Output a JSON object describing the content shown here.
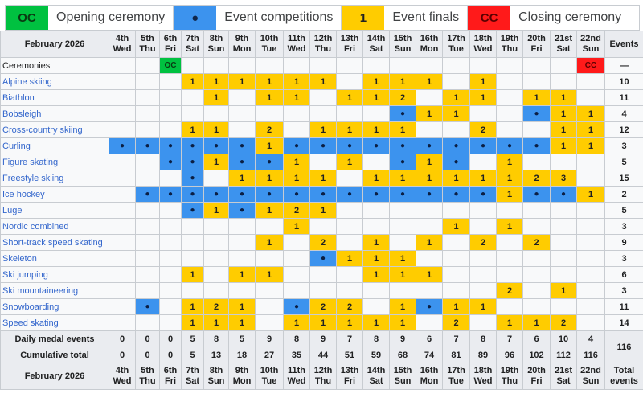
{
  "legend": [
    {
      "symbol": "OC",
      "label": "Opening ceremony",
      "color": "#00c140"
    },
    {
      "symbol": "●",
      "label": "Event competitions",
      "color": "#3c93ee"
    },
    {
      "symbol": "1",
      "label": "Event finals",
      "color": "#ffcc00"
    },
    {
      "symbol": "CC",
      "label": "Closing ceremony",
      "color": "#ff1a1a"
    }
  ],
  "header": {
    "corner": "February 2026",
    "events_label": "Events",
    "total_label": "Total events",
    "days": [
      {
        "day": "4th",
        "wd": "Wed"
      },
      {
        "day": "5th",
        "wd": "Thu"
      },
      {
        "day": "6th",
        "wd": "Fri"
      },
      {
        "day": "7th",
        "wd": "Sat"
      },
      {
        "day": "8th",
        "wd": "Sun"
      },
      {
        "day": "9th",
        "wd": "Mon"
      },
      {
        "day": "10th",
        "wd": "Tue"
      },
      {
        "day": "11th",
        "wd": "Wed"
      },
      {
        "day": "12th",
        "wd": "Thu"
      },
      {
        "day": "13th",
        "wd": "Fri"
      },
      {
        "day": "14th",
        "wd": "Sat"
      },
      {
        "day": "15th",
        "wd": "Sun"
      },
      {
        "day": "16th",
        "wd": "Mon"
      },
      {
        "day": "17th",
        "wd": "Tue"
      },
      {
        "day": "18th",
        "wd": "Wed"
      },
      {
        "day": "19th",
        "wd": "Thu"
      },
      {
        "day": "20th",
        "wd": "Fri"
      },
      {
        "day": "21st",
        "wd": "Sat"
      },
      {
        "day": "22nd",
        "wd": "Sun"
      }
    ]
  },
  "rows": [
    {
      "sport": "Ceremonies",
      "cells": [
        "",
        "",
        "OC",
        "",
        "",
        "",
        "",
        "",
        "",
        "",
        "",
        "",
        "",
        "",
        "",
        "",
        "",
        "",
        "CC"
      ],
      "total": "—"
    },
    {
      "sport": "Alpine skiing",
      "cells": [
        "",
        "",
        "",
        "1",
        "1",
        "1",
        "1",
        "1",
        "1",
        "",
        "1",
        "1",
        "1",
        "",
        "1",
        "",
        "",
        "",
        ""
      ],
      "total": "10"
    },
    {
      "sport": "Biathlon",
      "cells": [
        "",
        "",
        "",
        "",
        "1",
        "",
        "1",
        "1",
        "",
        "1",
        "1",
        "2",
        "",
        "1",
        "1",
        "",
        "1",
        "1",
        ""
      ],
      "total": "11"
    },
    {
      "sport": "Bobsleigh",
      "cells": [
        "",
        "",
        "",
        "",
        "",
        "",
        "",
        "",
        "",
        "",
        "",
        "●",
        "1",
        "1",
        "",
        "",
        "●",
        "1",
        "1"
      ],
      "total": "4"
    },
    {
      "sport": "Cross-country skiing",
      "cells": [
        "",
        "",
        "",
        "1",
        "1",
        "",
        "2",
        "",
        "1",
        "1",
        "1",
        "1",
        "",
        "",
        "2",
        "",
        "",
        "1",
        "1"
      ],
      "total": "12"
    },
    {
      "sport": "Curling",
      "cells": [
        "●",
        "●",
        "●",
        "●",
        "●",
        "●",
        "1",
        "●",
        "●",
        "●",
        "●",
        "●",
        "●",
        "●",
        "●",
        "●",
        "●",
        "1",
        "1"
      ],
      "total": "3"
    },
    {
      "sport": "Figure skating",
      "cells": [
        "",
        "",
        "●",
        "●",
        "1",
        "●",
        "●",
        "1",
        "",
        "1",
        "",
        "●",
        "1",
        "●",
        "",
        "1",
        "",
        "",
        ""
      ],
      "total": "5"
    },
    {
      "sport": "Freestyle skiing",
      "cells": [
        "",
        "",
        "",
        "●",
        "",
        "1",
        "1",
        "1",
        "1",
        "",
        "1",
        "1",
        "1",
        "1",
        "1",
        "1",
        "2",
        "3",
        ""
      ],
      "total": "15"
    },
    {
      "sport": "Ice hockey",
      "cells": [
        "",
        "●",
        "●",
        "●",
        "●",
        "●",
        "●",
        "●",
        "●",
        "●",
        "●",
        "●",
        "●",
        "●",
        "●",
        "1",
        "●",
        "●",
        "1"
      ],
      "total": "2"
    },
    {
      "sport": "Luge",
      "cells": [
        "",
        "",
        "",
        "●",
        "1",
        "●",
        "1",
        "2",
        "1",
        "",
        "",
        "",
        "",
        "",
        "",
        "",
        "",
        "",
        ""
      ],
      "total": "5"
    },
    {
      "sport": "Nordic combined",
      "cells": [
        "",
        "",
        "",
        "",
        "",
        "",
        "",
        "1",
        "",
        "",
        "",
        "",
        "",
        "1",
        "",
        "1",
        "",
        "",
        ""
      ],
      "total": "3"
    },
    {
      "sport": "Short-track speed skating",
      "cells": [
        "",
        "",
        "",
        "",
        "",
        "",
        "1",
        "",
        "2",
        "",
        "1",
        "",
        "1",
        "",
        "2",
        "",
        "2",
        "",
        ""
      ],
      "total": "9"
    },
    {
      "sport": "Skeleton",
      "cells": [
        "",
        "",
        "",
        "",
        "",
        "",
        "",
        "",
        "●",
        "1",
        "1",
        "1",
        "",
        "",
        "",
        "",
        "",
        "",
        ""
      ],
      "total": "3"
    },
    {
      "sport": "Ski jumping",
      "cells": [
        "",
        "",
        "",
        "1",
        "",
        "1",
        "1",
        "",
        "",
        "",
        "1",
        "1",
        "1",
        "",
        "",
        "",
        "",
        "",
        ""
      ],
      "total": "6"
    },
    {
      "sport": "Ski mountaineering",
      "cells": [
        "",
        "",
        "",
        "",
        "",
        "",
        "",
        "",
        "",
        "",
        "",
        "",
        "",
        "",
        "",
        "2",
        "",
        "1",
        ""
      ],
      "total": "3"
    },
    {
      "sport": "Snowboarding",
      "cells": [
        "",
        "●",
        "",
        "1",
        "2",
        "1",
        "",
        "●",
        "2",
        "2",
        "",
        "1",
        "●",
        "1",
        "1",
        "",
        "",
        "",
        ""
      ],
      "total": "11"
    },
    {
      "sport": "Speed skating",
      "cells": [
        "",
        "",
        "",
        "1",
        "1",
        "1",
        "",
        "1",
        "1",
        "1",
        "1",
        "1",
        "",
        "2",
        "",
        "1",
        "1",
        "2",
        ""
      ],
      "total": "14"
    }
  ],
  "summary": {
    "daily_label": "Daily medal events",
    "daily": [
      "0",
      "0",
      "0",
      "5",
      "8",
      "5",
      "9",
      "8",
      "9",
      "7",
      "8",
      "9",
      "6",
      "7",
      "8",
      "7",
      "6",
      "10",
      "4"
    ],
    "cumulative_label": "Cumulative total",
    "cumulative": [
      "0",
      "0",
      "0",
      "5",
      "13",
      "18",
      "27",
      "35",
      "44",
      "51",
      "59",
      "68",
      "74",
      "81",
      "89",
      "96",
      "102",
      "112",
      "116"
    ],
    "grand_total": "116"
  }
}
